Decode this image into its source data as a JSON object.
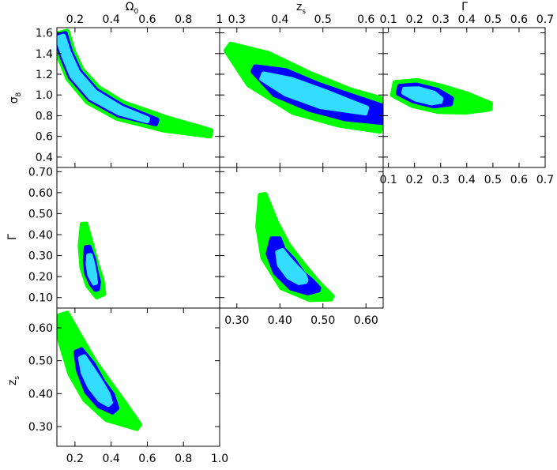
{
  "colors": {
    "outer_contour": "#00ff00",
    "middle_contour": "#0000ff",
    "inner_contour": "#33ddff",
    "frame": "#000000"
  },
  "chart_data": {
    "type": "contour",
    "levels": [
      "outer",
      "middle",
      "inner"
    ],
    "panels": [
      {
        "id": "omega-sigma8",
        "x_param": "Omega_0",
        "y_param": "sigma_8",
        "xlim": [
          0.1,
          1.0
        ],
        "ylim": [
          0.3,
          1.65
        ],
        "x_ticks": [
          "0.2",
          "0.4",
          "0.6",
          "0.8",
          "1"
        ],
        "x_tick_values": [
          0.2,
          0.4,
          0.6,
          0.8,
          1.0
        ],
        "x_ticks_position": "top",
        "y_ticks": [
          "0.4",
          "0.6",
          "0.8",
          "1.0",
          "1.2",
          "1.4",
          "1.6"
        ],
        "y_tick_values": [
          0.4,
          0.6,
          0.8,
          1.0,
          1.2,
          1.4,
          1.6
        ],
        "y_ticks_position": "left",
        "contours": {
          "outer": {
            "center": [
              [
                0.12,
                1.6
              ],
              [
                0.15,
                1.4
              ],
              [
                0.2,
                1.2
              ],
              [
                0.3,
                1.0
              ],
              [
                0.45,
                0.85
              ],
              [
                0.7,
                0.72
              ],
              [
                0.95,
                0.63
              ]
            ],
            "width": [
              0.05,
              0.055,
              0.06,
              0.065,
              0.06,
              0.045,
              0.02
            ]
          },
          "middle": {
            "center": [
              [
                0.12,
                1.58
              ],
              [
                0.15,
                1.4
              ],
              [
                0.2,
                1.2
              ],
              [
                0.3,
                1.0
              ],
              [
                0.45,
                0.85
              ],
              [
                0.65,
                0.74
              ]
            ],
            "width": [
              0.035,
              0.035,
              0.04,
              0.04,
              0.035,
              0.015
            ]
          },
          "inner": {
            "center": [
              [
                0.12,
                1.56
              ],
              [
                0.15,
                1.4
              ],
              [
                0.2,
                1.2
              ],
              [
                0.3,
                1.0
              ],
              [
                0.45,
                0.85
              ],
              [
                0.6,
                0.76
              ]
            ],
            "width": [
              0.022,
              0.022,
              0.025,
              0.026,
              0.02,
              0.008
            ]
          }
        }
      },
      {
        "id": "zs-sigma8",
        "x_param": "z_s",
        "y_param": "sigma_8",
        "xlim": [
          0.26,
          0.64
        ],
        "ylim": [
          0.3,
          1.65
        ],
        "x_ticks": [
          "0.3",
          "0.4",
          "0.5",
          "0.6"
        ],
        "x_tick_values": [
          0.3,
          0.4,
          0.5,
          0.6
        ],
        "x_ticks_position": "top",
        "contours": {
          "outer": {
            "center": [
              [
                0.28,
                1.46
              ],
              [
                0.35,
                1.25
              ],
              [
                0.45,
                1.02
              ],
              [
                0.55,
                0.88
              ],
              [
                0.64,
                0.8
              ]
            ],
            "width": [
              0.015,
              0.07,
              0.08,
              0.07,
              0.06
            ]
          },
          "middle": {
            "center": [
              [
                0.34,
                1.25
              ],
              [
                0.4,
                1.12
              ],
              [
                0.48,
                0.98
              ],
              [
                0.56,
                0.88
              ],
              [
                0.64,
                0.81
              ]
            ],
            "width": [
              0.01,
              0.05,
              0.05,
              0.045,
              0.03
            ]
          },
          "inner": {
            "center": [
              [
                0.36,
                1.18
              ],
              [
                0.42,
                1.08
              ],
              [
                0.5,
                0.96
              ],
              [
                0.6,
                0.85
              ]
            ],
            "width": [
              0.01,
              0.03,
              0.03,
              0.01
            ]
          }
        }
      },
      {
        "id": "gamma-sigma8",
        "x_param": "Gamma",
        "y_param": "sigma_8",
        "xlim": [
          0.08,
          0.7
        ],
        "ylim": [
          0.3,
          1.65
        ],
        "x_ticks": [
          "0.1",
          "0.2",
          "0.3",
          "0.4",
          "0.5",
          "0.6",
          "0.7"
        ],
        "x_tick_values": [
          0.1,
          0.2,
          0.3,
          0.4,
          0.5,
          0.6,
          0.7
        ],
        "x_ticks_position": "top-and-bottom",
        "contours": {
          "outer": {
            "center": [
              [
                0.12,
                1.06
              ],
              [
                0.2,
                1.02
              ],
              [
                0.3,
                0.96
              ],
              [
                0.4,
                0.92
              ],
              [
                0.49,
                0.89
              ]
            ],
            "width": [
              0.035,
              0.07,
              0.07,
              0.05,
              0.015
            ]
          },
          "middle": {
            "center": [
              [
                0.14,
                1.05
              ],
              [
                0.2,
                1.02
              ],
              [
                0.28,
                0.97
              ],
              [
                0.34,
                0.94
              ]
            ],
            "width": [
              0.02,
              0.045,
              0.045,
              0.015
            ]
          },
          "inner": {
            "center": [
              [
                0.16,
                1.04
              ],
              [
                0.21,
                1.01
              ],
              [
                0.27,
                0.97
              ],
              [
                0.3,
                0.95
              ]
            ],
            "width": [
              0.01,
              0.03,
              0.028,
              0.008
            ]
          }
        }
      },
      {
        "id": "omega-gamma",
        "x_param": "Omega_0",
        "y_param": "Gamma",
        "xlim": [
          0.1,
          1.0
        ],
        "ylim": [
          0.05,
          0.72
        ],
        "y_ticks": [
          "0.10",
          "0.20",
          "0.30",
          "0.40",
          "0.50",
          "0.60",
          "0.70"
        ],
        "y_tick_values": [
          0.1,
          0.2,
          0.3,
          0.4,
          0.5,
          0.6,
          0.7
        ],
        "y_ticks_position": "left",
        "contours": {
          "outer": {
            "center": [
              [
                0.25,
                0.45
              ],
              [
                0.26,
                0.35
              ],
              [
                0.28,
                0.25
              ],
              [
                0.31,
                0.17
              ],
              [
                0.34,
                0.11
              ]
            ],
            "width": [
              0.01,
              0.03,
              0.04,
              0.04,
              0.02
            ]
          },
          "middle": {
            "center": [
              [
                0.27,
                0.34
              ],
              [
                0.28,
                0.28
              ],
              [
                0.29,
                0.22
              ],
              [
                0.31,
                0.17
              ],
              [
                0.32,
                0.14
              ]
            ],
            "width": [
              0.008,
              0.022,
              0.025,
              0.02,
              0.006
            ]
          },
          "inner": {
            "center": [
              [
                0.28,
                0.3
              ],
              [
                0.285,
                0.26
              ],
              [
                0.295,
                0.21
              ],
              [
                0.31,
                0.17
              ]
            ],
            "width": [
              0.005,
              0.012,
              0.013,
              0.004
            ]
          }
        }
      },
      {
        "id": "zs-gamma",
        "x_param": "z_s",
        "y_param": "Gamma",
        "xlim": [
          0.26,
          0.64
        ],
        "ylim": [
          0.05,
          0.72
        ],
        "x_ticks": [
          "0.30",
          "0.40",
          "0.50",
          "0.60"
        ],
        "x_tick_values": [
          0.3,
          0.4,
          0.5,
          0.6
        ],
        "x_ticks_position": "bottom",
        "contours": {
          "outer": {
            "center": [
              [
                0.36,
                0.59
              ],
              [
                0.37,
                0.45
              ],
              [
                0.39,
                0.32
              ],
              [
                0.43,
                0.2
              ],
              [
                0.48,
                0.13
              ],
              [
                0.52,
                0.1
              ]
            ],
            "width": [
              0.008,
              0.03,
              0.045,
              0.05,
              0.03,
              0.005
            ]
          },
          "middle": {
            "center": [
              [
                0.39,
                0.38
              ],
              [
                0.39,
                0.32
              ],
              [
                0.41,
                0.25
              ],
              [
                0.44,
                0.18
              ],
              [
                0.47,
                0.15
              ],
              [
                0.49,
                0.14
              ]
            ],
            "width": [
              0.012,
              0.025,
              0.035,
              0.03,
              0.02,
              0.003
            ]
          },
          "inner": {
            "center": [
              [
                0.4,
                0.32
              ],
              [
                0.41,
                0.27
              ],
              [
                0.43,
                0.22
              ],
              [
                0.45,
                0.19
              ],
              [
                0.46,
                0.18
              ]
            ],
            "width": [
              0.008,
              0.018,
              0.02,
              0.015,
              0.003
            ]
          }
        }
      },
      {
        "id": "omega-zs",
        "x_param": "Omega_0",
        "y_param": "z_s",
        "xlim": [
          0.1,
          1.0
        ],
        "ylim": [
          0.24,
          0.66
        ],
        "x_ticks": [
          "0.2",
          "0.4",
          "0.6",
          "0.8",
          "1.0"
        ],
        "x_tick_values": [
          0.2,
          0.4,
          0.6,
          0.8,
          1.0
        ],
        "x_ticks_position": "bottom",
        "y_ticks": [
          "0.30",
          "0.40",
          "0.50",
          "0.60"
        ],
        "y_tick_values": [
          0.3,
          0.4,
          0.5,
          0.6
        ],
        "y_ticks_position": "left",
        "contours": {
          "outer": {
            "center": [
              [
                0.13,
                0.64
              ],
              [
                0.17,
                0.57
              ],
              [
                0.24,
                0.48
              ],
              [
                0.32,
                0.41
              ],
              [
                0.42,
                0.35
              ],
              [
                0.55,
                0.3
              ]
            ],
            "width": [
              0.02,
              0.04,
              0.055,
              0.06,
              0.05,
              0.01
            ]
          },
          "middle": {
            "center": [
              [
                0.22,
                0.53
              ],
              [
                0.26,
                0.48
              ],
              [
                0.31,
                0.42
              ],
              [
                0.37,
                0.38
              ],
              [
                0.42,
                0.35
              ]
            ],
            "width": [
              0.012,
              0.032,
              0.038,
              0.035,
              0.012
            ]
          },
          "inner": {
            "center": [
              [
                0.24,
                0.51
              ],
              [
                0.27,
                0.47
              ],
              [
                0.31,
                0.43
              ],
              [
                0.36,
                0.39
              ],
              [
                0.39,
                0.37
              ]
            ],
            "width": [
              0.008,
              0.02,
              0.024,
              0.02,
              0.006
            ]
          }
        }
      }
    ],
    "axis_titles": [
      {
        "id": "omega-top",
        "text": "Ω",
        "sub": "0"
      },
      {
        "id": "zs-top",
        "text": "z",
        "sub": "s"
      },
      {
        "id": "gamma-top",
        "text": "Γ",
        "sub": ""
      },
      {
        "id": "sigma8-left",
        "text": "σ",
        "sub": "8"
      },
      {
        "id": "gamma-left",
        "text": "Γ",
        "sub": ""
      },
      {
        "id": "zs-left",
        "text": "z",
        "sub": "s"
      }
    ]
  }
}
